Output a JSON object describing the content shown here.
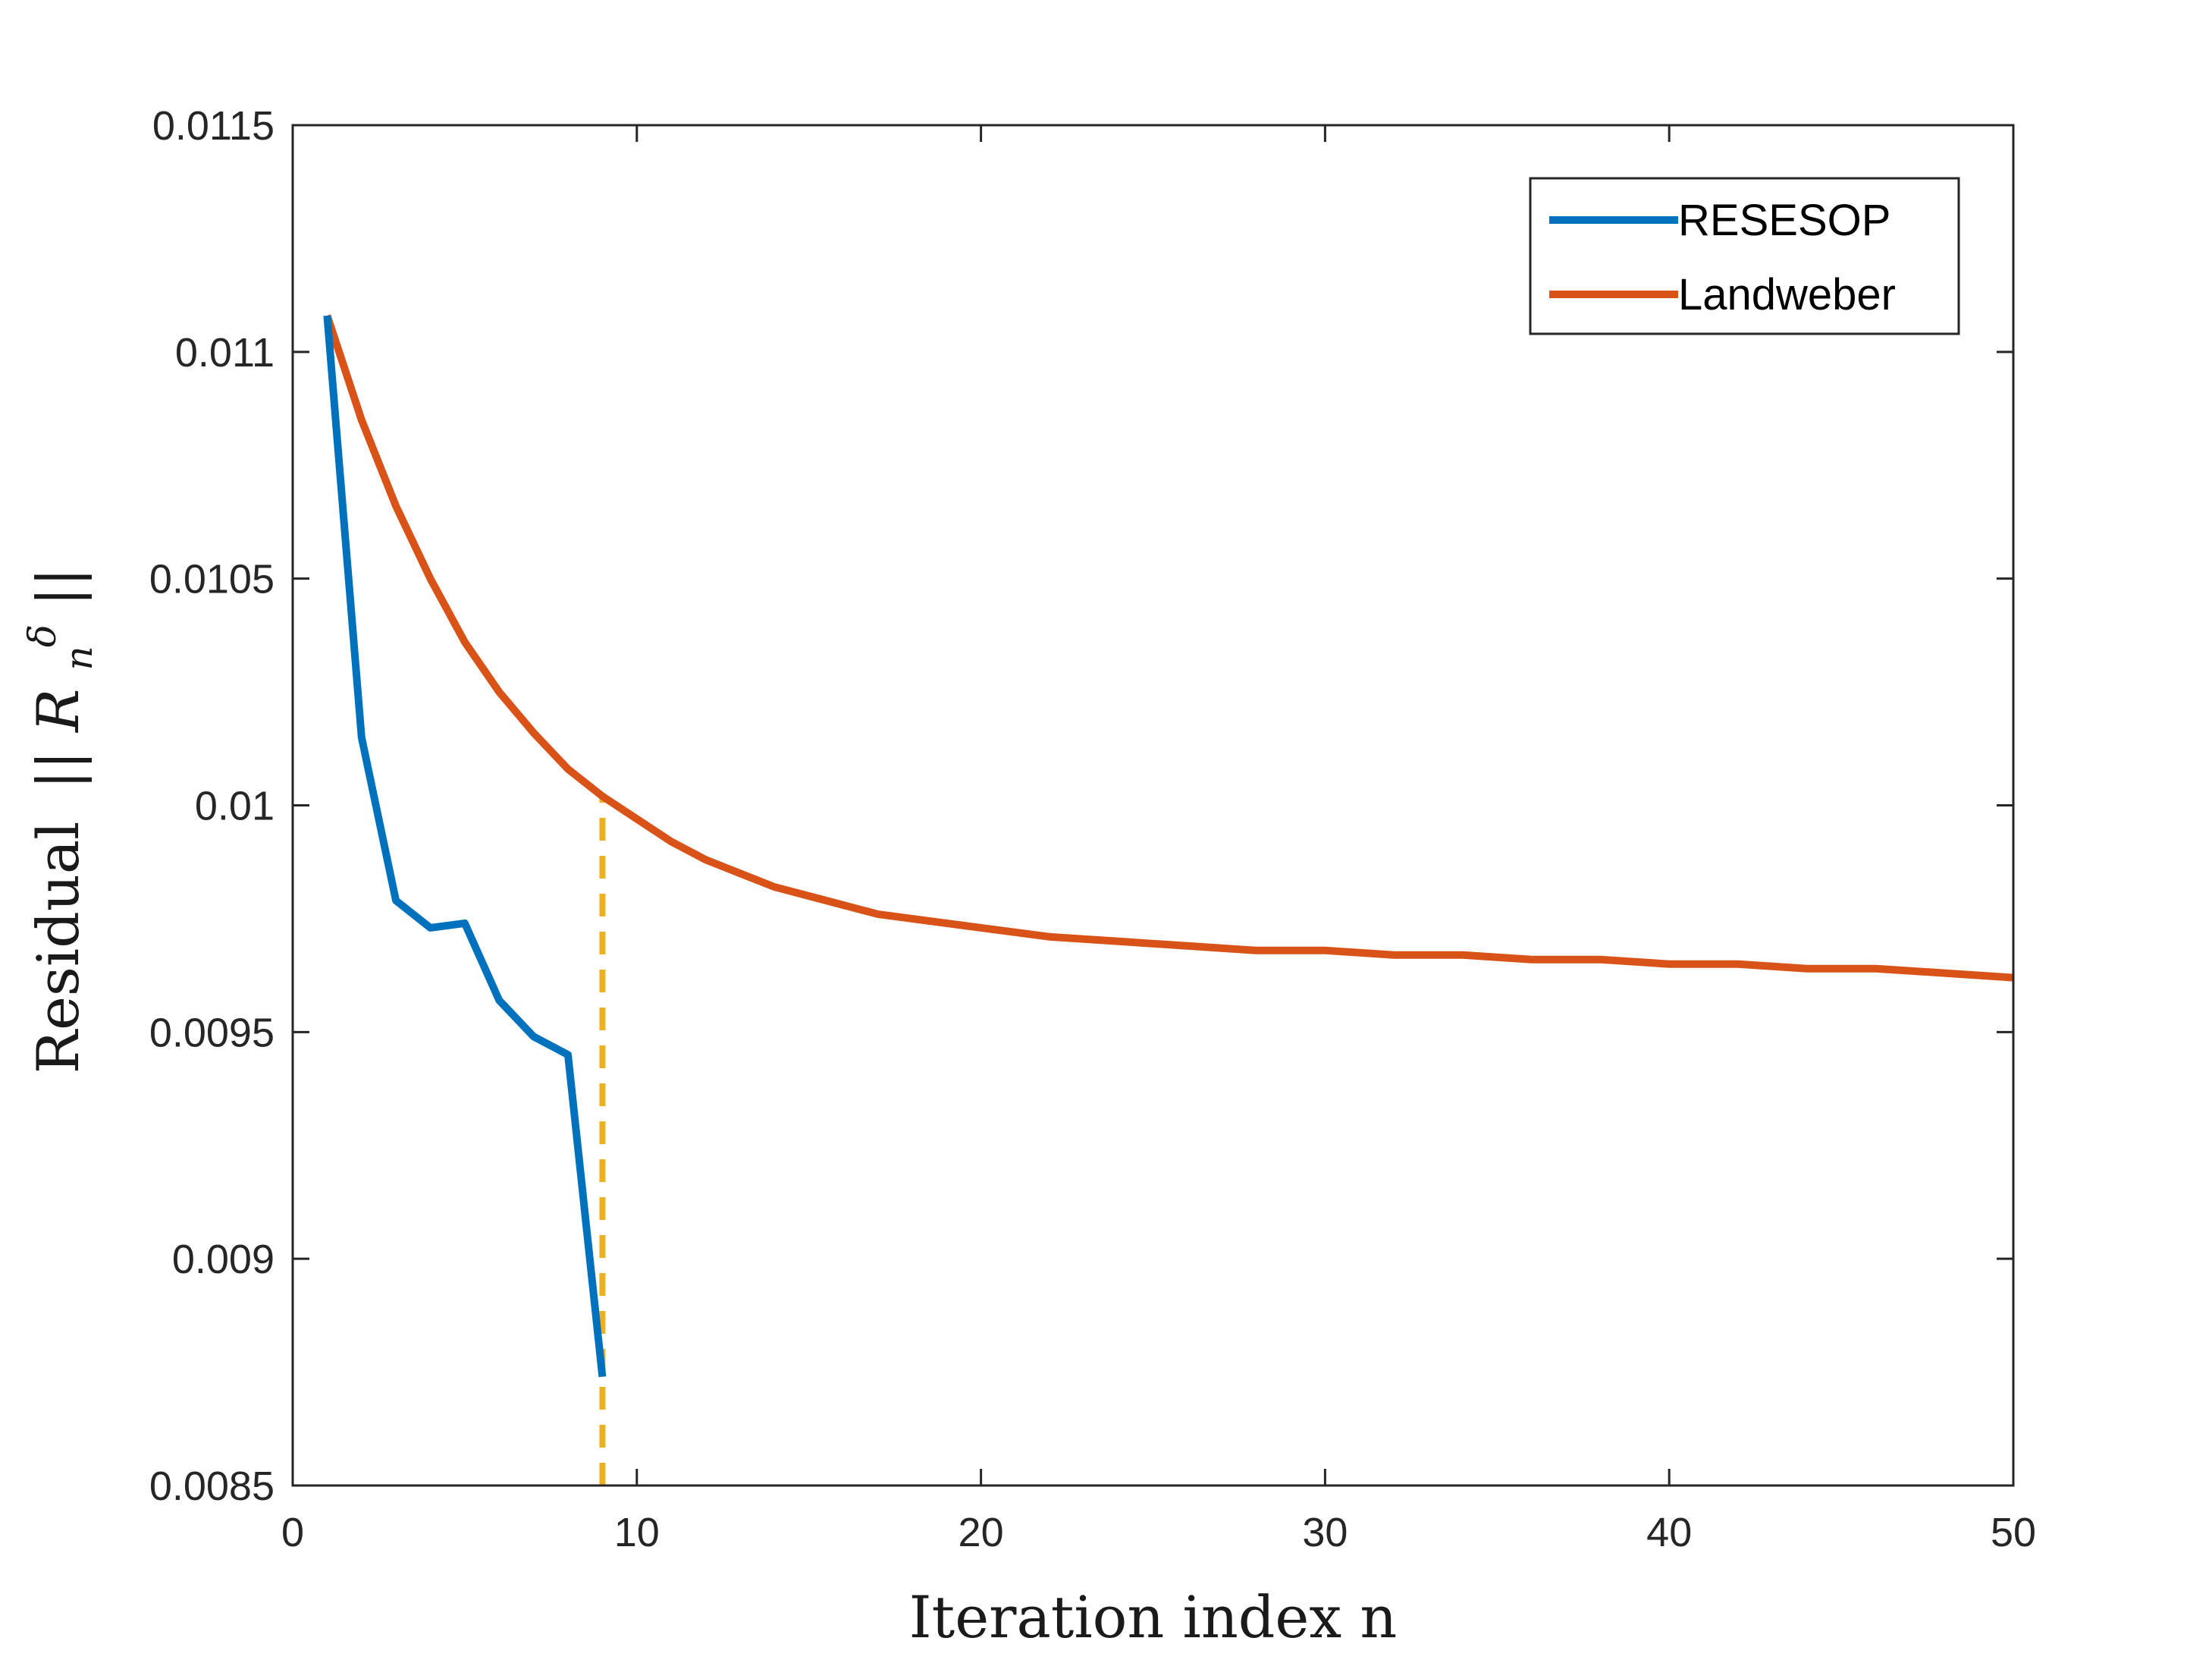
{
  "chart_data": {
    "type": "line",
    "title": "",
    "xlabel": "Iteration index  n",
    "ylabel_prefix": "Residual",
    "ylabel_symbol": "|| R",
    "ylabel_sub": "n",
    "ylabel_sup": "δ",
    "ylabel_suffix": " ||",
    "xlim": [
      0,
      50
    ],
    "ylim": [
      0.0085,
      0.0115
    ],
    "xticks": [
      0,
      10,
      20,
      30,
      40,
      50
    ],
    "xtick_labels": [
      "0",
      "10",
      "20",
      "30",
      "40",
      "50"
    ],
    "yticks": [
      0.0085,
      0.009,
      0.0095,
      0.01,
      0.0105,
      0.011,
      0.0115
    ],
    "ytick_labels": [
      "0.0085",
      "0.009",
      "0.0095",
      "0.01",
      "0.0105",
      "0.011",
      "0.0115"
    ],
    "legend_position": "top-right",
    "series": [
      {
        "name": "RESESOP",
        "color": "#0072BD",
        "x": [
          1,
          2,
          3,
          4,
          5,
          6,
          7,
          8,
          9
        ],
        "y": [
          0.01108,
          0.01015,
          0.00979,
          0.00973,
          0.00974,
          0.00957,
          0.00949,
          0.00945,
          0.00874
        ]
      },
      {
        "name": "Landweber",
        "color": "#D95319",
        "x": [
          1,
          2,
          3,
          4,
          5,
          6,
          7,
          8,
          9,
          10,
          11,
          12,
          13,
          14,
          15,
          16,
          17,
          18,
          19,
          20,
          22,
          24,
          26,
          28,
          30,
          32,
          34,
          36,
          38,
          40,
          42,
          44,
          46,
          48,
          50
        ],
        "y": [
          0.01108,
          0.01085,
          0.01066,
          0.0105,
          0.01036,
          0.01025,
          0.01016,
          0.01008,
          0.01002,
          0.00997,
          0.00992,
          0.00988,
          0.00985,
          0.00982,
          0.0098,
          0.00978,
          0.00976,
          0.00975,
          0.00974,
          0.00973,
          0.00971,
          0.0097,
          0.00969,
          0.00968,
          0.00968,
          0.00967,
          0.00967,
          0.00966,
          0.00966,
          0.00965,
          0.00965,
          0.00964,
          0.00964,
          0.00963,
          0.00962
        ]
      }
    ],
    "reference_line": {
      "x": 9,
      "y_from": 0.0085,
      "y_to": 0.01002,
      "style": "dashed",
      "color": "#EDB120"
    }
  }
}
